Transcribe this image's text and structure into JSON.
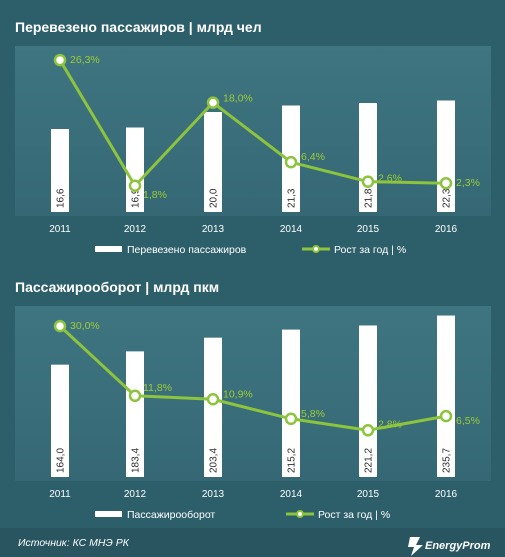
{
  "colors": {
    "background": "#2d5f6b",
    "plot_background": "#3a6f7b",
    "bar": "#ffffff",
    "line": "#8cc43d",
    "label_green": "#9ccc35"
  },
  "chart_data": [
    {
      "type": "bar+line",
      "title": "Перевезено пассажиров | млрд чел",
      "categories": [
        "2011",
        "2012",
        "2013",
        "2014",
        "2015",
        "2016"
      ],
      "bar_series": {
        "name": "Перевезено пассажиров",
        "values": [
          16.6,
          16.9,
          20.0,
          21.3,
          21.8,
          22.3
        ],
        "labels": [
          "16,6",
          "16,9",
          "20,0",
          "21,3",
          "21,8",
          "22,3"
        ]
      },
      "line_series": {
        "name": "Рост за год | %",
        "values": [
          26.3,
          1.8,
          18.0,
          6.4,
          2.6,
          2.3
        ],
        "labels": [
          "26,3%",
          "1,8%",
          "18,0%",
          "6,4%",
          "2,6%",
          "2,3%"
        ]
      }
    },
    {
      "type": "bar+line",
      "title": "Пассажирооборот | млрд пкм",
      "categories": [
        "2011",
        "2012",
        "2013",
        "2014",
        "2015",
        "2016"
      ],
      "bar_series": {
        "name": "Пассажирооборот",
        "values": [
          164.0,
          183.4,
          203.4,
          215.2,
          221.2,
          235.7
        ],
        "labels": [
          "164,0",
          "183,4",
          "203,4",
          "215,2",
          "221,2",
          "235,7"
        ]
      },
      "line_series": {
        "name": "Рост за год | %",
        "values": [
          30.0,
          11.8,
          10.9,
          5.8,
          2.8,
          6.5
        ],
        "labels": [
          "30,0%",
          "11,8%",
          "10,9%",
          "5,8%",
          "2,8%",
          "6,5%"
        ]
      }
    }
  ],
  "footer": {
    "source": "Источник: КС МНЭ РК",
    "brand": "EnergyProm"
  }
}
